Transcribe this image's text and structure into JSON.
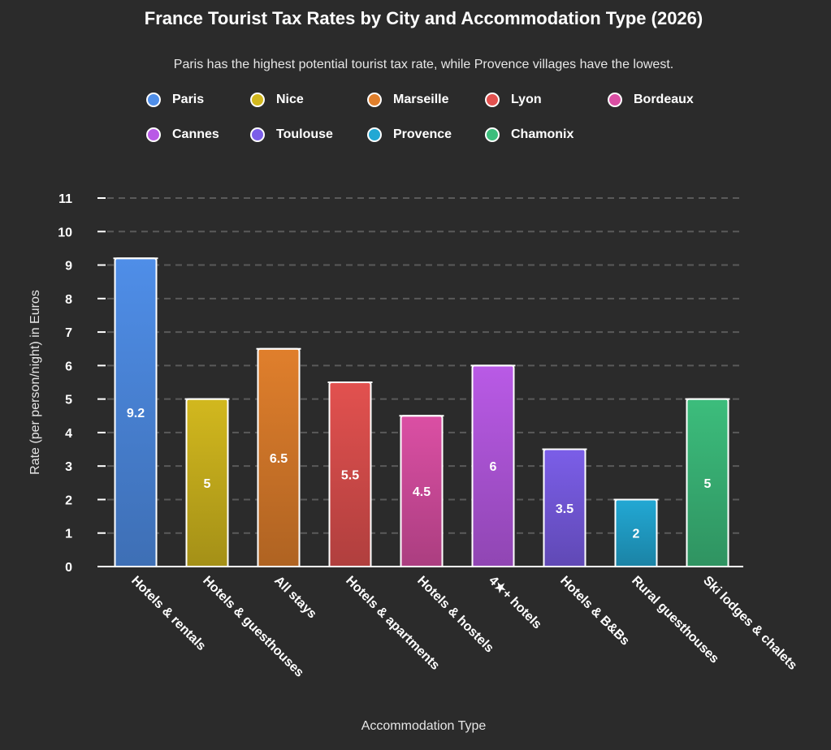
{
  "chart_data": {
    "type": "bar",
    "title": "France Tourist Tax Rates by City and Accommodation Type (2026)",
    "subtitle": "Paris has the highest potential tourist tax rate, while Provence villages have the lowest.",
    "xlabel": "Accommodation Type",
    "ylabel": "Rate (per person/night) in Euros",
    "ylim": [
      0,
      11
    ],
    "yticks": [
      "0",
      "1",
      "2",
      "3",
      "4",
      "5",
      "6",
      "7",
      "8",
      "9",
      "10",
      "11"
    ],
    "grid": true,
    "legend_position": "top",
    "categories": [
      "Hotels & rentals",
      "Hotels & guesthouses",
      "All stays",
      "Hotels & apartments",
      "Hotels & hostels",
      "4★+ hotels",
      "Hotels & B&Bs",
      "Rural guesthouses",
      "Ski lodges & chalets"
    ],
    "series": [
      {
        "name": "Paris",
        "category": "Hotels & rentals",
        "value": 9.2,
        "label": "9.2",
        "color": "#4f8ee8"
      },
      {
        "name": "Nice",
        "category": "Hotels & guesthouses",
        "value": 5,
        "label": "5",
        "color": "#d2b81e"
      },
      {
        "name": "Marseille",
        "category": "All stays",
        "value": 6.5,
        "label": "6.5",
        "color": "#e07f2c"
      },
      {
        "name": "Lyon",
        "category": "Hotels & apartments",
        "value": 5.5,
        "label": "5.5",
        "color": "#e2514f"
      },
      {
        "name": "Bordeaux",
        "category": "Hotels & hostels",
        "value": 4.5,
        "label": "4.5",
        "color": "#db4fa4"
      },
      {
        "name": "Cannes",
        "category": "4★+ hotels",
        "value": 6,
        "label": "6",
        "color": "#b95ae6"
      },
      {
        "name": "Toulouse",
        "category": "Hotels & B&Bs",
        "value": 3.5,
        "label": "3.5",
        "color": "#7b5ee8"
      },
      {
        "name": "Provence",
        "category": "Rural guesthouses",
        "value": 2,
        "label": "2",
        "color": "#22a8d4"
      },
      {
        "name": "Chamonix",
        "category": "Ski lodges & chalets",
        "value": 5,
        "label": "5",
        "color": "#3cbd7c"
      }
    ]
  }
}
